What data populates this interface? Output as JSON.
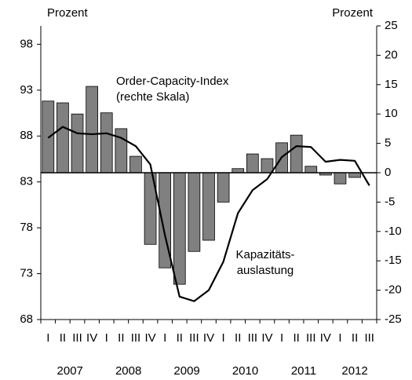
{
  "chart_data": {
    "type": "bar_line",
    "y_label": "Prozent",
    "y2_label": "Prozent",
    "annotations": [
      {
        "lines": [
          "Order-Capacity-Index",
          "(rechte Skala)"
        ]
      },
      {
        "lines": [
          "Kapazitäts-",
          "auslastung"
        ]
      }
    ],
    "categories": [
      "I",
      "II",
      "III",
      "IV",
      "I",
      "II",
      "III",
      "IV",
      "I",
      "II",
      "III",
      "IV",
      "I",
      "II",
      "III",
      "IV",
      "I",
      "II",
      "III",
      "IV",
      "I",
      "II",
      "III"
    ],
    "years": [
      "2007",
      "2008",
      "2009",
      "2010",
      "2011",
      "2012"
    ],
    "ylim": [
      68,
      100
    ],
    "yticks": [
      68,
      73,
      78,
      83,
      88,
      93,
      98
    ],
    "y2lim": [
      -25,
      25
    ],
    "y2ticks": [
      -25,
      -20,
      -15,
      -10,
      -5,
      0,
      5,
      10,
      15,
      20,
      25
    ],
    "series": [
      {
        "name": "Order-Capacity-Index",
        "type": "bar",
        "axis": "y2",
        "color": "#808080",
        "values": [
          12.2,
          11.9,
          10,
          14.7,
          10.2,
          7.5,
          2.8,
          -12.2,
          -16.2,
          -19,
          -13.4,
          -11.5,
          -5,
          0.7,
          3.2,
          2.4,
          5.1,
          6.4,
          1.1,
          -0.4,
          -1.9,
          -0.8,
          null
        ]
      },
      {
        "name": "Kapazitätsauslastung",
        "type": "line",
        "axis": "y",
        "color": "#000000",
        "values": [
          87.8,
          89,
          88.3,
          88.2,
          88.3,
          87.8,
          86.9,
          84.9,
          77.2,
          70.5,
          70,
          71.2,
          74.3,
          79.6,
          82.1,
          83.3,
          85.7,
          86.9,
          86.8,
          85.2,
          85.4,
          85.3,
          82.6
        ]
      }
    ]
  }
}
